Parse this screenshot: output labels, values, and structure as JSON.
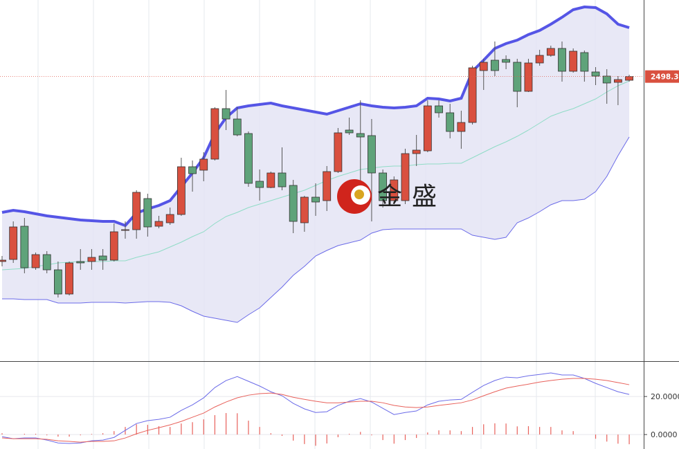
{
  "chart_data": [
    {
      "type": "candlestick",
      "watermark": "金盛",
      "last_price": 2498.35,
      "ylim": [
        2087,
        2609
      ],
      "up_color": "#d9503f",
      "down_color": "#5fa37a",
      "open": [
        2231,
        2234,
        2282,
        2222,
        2241,
        2219,
        2184,
        2231,
        2231,
        2239,
        2233,
        2276,
        2277,
        2322,
        2282,
        2287,
        2299,
        2368,
        2363,
        2379,
        2452,
        2437,
        2416,
        2347,
        2338,
        2359,
        2341,
        2287,
        2324,
        2319,
        2361,
        2421,
        2416,
        2413,
        2359,
        2319,
        2319,
        2387,
        2391,
        2456,
        2446,
        2419,
        2432,
        2507,
        2522,
        2523,
        2519,
        2477,
        2518,
        2529,
        2539,
        2506,
        2533,
        2505,
        2499,
        2490,
        2493
      ],
      "high": [
        2239,
        2289,
        2294,
        2244,
        2246,
        2231,
        2231,
        2249,
        2249,
        2249,
        2286,
        2289,
        2334,
        2329,
        2297,
        2309,
        2381,
        2377,
        2389,
        2454,
        2479,
        2454,
        2419,
        2364,
        2361,
        2396,
        2349,
        2326,
        2344,
        2369,
        2424,
        2439,
        2464,
        2437,
        2364,
        2354,
        2394,
        2414,
        2464,
        2464,
        2459,
        2449,
        2514,
        2524,
        2549,
        2529,
        2524,
        2524,
        2537,
        2543,
        2549,
        2539,
        2536,
        2512,
        2509,
        2499,
        2501
      ],
      "low": [
        2224,
        2229,
        2214,
        2219,
        2214,
        2179,
        2182,
        2219,
        2219,
        2219,
        2231,
        2264,
        2264,
        2267,
        2279,
        2284,
        2297,
        2332,
        2347,
        2377,
        2421,
        2412,
        2339,
        2319,
        2337,
        2334,
        2272,
        2274,
        2297,
        2304,
        2359,
        2414,
        2324,
        2289,
        2309,
        2314,
        2314,
        2369,
        2389,
        2439,
        2409,
        2394,
        2429,
        2479,
        2499,
        2509,
        2454,
        2476,
        2514,
        2527,
        2491,
        2504,
        2491,
        2486,
        2459,
        2457,
        2491
      ],
      "close": [
        2233,
        2281,
        2222,
        2241,
        2219,
        2184,
        2229,
        2229,
        2237,
        2233,
        2274,
        2277,
        2331,
        2281,
        2289,
        2299,
        2368,
        2358,
        2379,
        2452,
        2437,
        2414,
        2344,
        2338,
        2359,
        2339,
        2289,
        2324,
        2317,
        2361,
        2417,
        2417,
        2411,
        2359,
        2319,
        2349,
        2387,
        2392,
        2456,
        2446,
        2419,
        2432,
        2511,
        2519,
        2507,
        2519,
        2477,
        2518,
        2529,
        2539,
        2506,
        2535,
        2506,
        2499,
        2489,
        2494,
        2498.35
      ],
      "bands": [
        {
          "color": "#5555e6",
          "values": [
            2302,
            2305,
            2303,
            2300,
            2297,
            2295,
            2293,
            2291,
            2290,
            2289,
            2289,
            2283,
            2301,
            2307,
            2312,
            2319,
            2339,
            2359,
            2381,
            2416,
            2439,
            2453,
            2456,
            2458,
            2460,
            2456,
            2453,
            2450,
            2447,
            2444,
            2449,
            2454,
            2459,
            2456,
            2454,
            2453,
            2454,
            2456,
            2467,
            2466,
            2463,
            2467,
            2506,
            2522,
            2539,
            2546,
            2551,
            2559,
            2565,
            2574,
            2584,
            2595,
            2599,
            2598,
            2589,
            2574,
            2569
          ]
        },
        {
          "color": "#8fdcc6",
          "values": [
            2219,
            2220,
            2221,
            2224,
            2226,
            2229,
            2230,
            2231,
            2231,
            2231,
            2232,
            2232,
            2237,
            2241,
            2245,
            2252,
            2259,
            2267,
            2274,
            2286,
            2296,
            2302,
            2309,
            2314,
            2319,
            2324,
            2329,
            2334,
            2341,
            2348,
            2354,
            2359,
            2364,
            2366,
            2368,
            2369,
            2369,
            2371,
            2372,
            2372,
            2373,
            2373,
            2381,
            2389,
            2397,
            2404,
            2412,
            2421,
            2431,
            2441,
            2447,
            2452,
            2459,
            2466,
            2476,
            2485,
            2492
          ]
        },
        {
          "color": "#6a6ae8",
          "values": [
            2177,
            2177,
            2176,
            2176,
            2176,
            2171,
            2171,
            2171,
            2172,
            2172,
            2172,
            2171,
            2172,
            2173,
            2173,
            2172,
            2167,
            2159,
            2152,
            2149,
            2146,
            2143,
            2154,
            2164,
            2179,
            2194,
            2211,
            2224,
            2239,
            2247,
            2254,
            2258,
            2262,
            2272,
            2277,
            2278,
            2278,
            2278,
            2278,
            2278,
            2278,
            2278,
            2269,
            2266,
            2263,
            2266,
            2287,
            2294,
            2303,
            2313,
            2319,
            2319,
            2321,
            2332,
            2354,
            2384,
            2411
          ]
        }
      ]
    },
    {
      "type": "macd",
      "ylim": [
        -7.6,
        37.5
      ],
      "yticks": [
        {
          "value": 20,
          "label": "20.0000"
        },
        {
          "value": 0,
          "label": "0.0000"
        }
      ],
      "series": [
        {
          "color": "#6a6ae8",
          "values": [
            -1.1,
            -2.2,
            -1.8,
            -1.8,
            -2.9,
            -4.4,
            -4.7,
            -4.4,
            -3.3,
            -2.9,
            -1.5,
            2.2,
            5.8,
            7.3,
            8.0,
            9.1,
            12.7,
            15.6,
            19.3,
            24.7,
            28.4,
            30.5,
            28.0,
            25.5,
            22.5,
            20.4,
            16.4,
            13.5,
            11.6,
            12.0,
            15.3,
            17.5,
            18.9,
            17.1,
            13.8,
            10.5,
            11.6,
            12.4,
            15.6,
            17.5,
            18.2,
            18.5,
            22.2,
            25.8,
            28.4,
            30.2,
            29.8,
            30.9,
            31.6,
            32.4,
            31.3,
            31.3,
            29.5,
            26.9,
            24.7,
            22.5,
            21.1
          ]
        },
        {
          "color": "#e8605a",
          "values": [
            -1.8,
            -2.2,
            -2.2,
            -2.2,
            -2.5,
            -3.3,
            -3.6,
            -4.0,
            -3.6,
            -3.6,
            -3.3,
            -1.8,
            0.4,
            2.2,
            3.6,
            5.1,
            6.9,
            9.1,
            11.3,
            14.5,
            17.1,
            19.3,
            20.7,
            21.5,
            21.8,
            21.1,
            19.6,
            18.5,
            17.5,
            16.7,
            16.7,
            17.1,
            17.5,
            17.5,
            16.7,
            15.3,
            14.5,
            14.2,
            14.5,
            15.3,
            16.0,
            16.7,
            18.2,
            20.4,
            22.5,
            24.4,
            25.5,
            26.5,
            27.6,
            28.4,
            29.1,
            29.5,
            29.5,
            29.1,
            28.4,
            27.3,
            26.2
          ]
        }
      ],
      "histogram": {
        "color": "#e8605a",
        "values": [
          0.7,
          0,
          0.4,
          0.4,
          -0.4,
          -1.1,
          -1.1,
          -0.4,
          0.3,
          0.7,
          1.8,
          4.0,
          5.4,
          5.1,
          4.4,
          4.0,
          5.8,
          6.5,
          8.0,
          10.2,
          11.3,
          11.2,
          7.3,
          4.0,
          0.7,
          -0.7,
          -3.2,
          -5.0,
          -5.9,
          -4.7,
          -1.4,
          0.4,
          1.4,
          -0.4,
          -2.9,
          -4.8,
          -2.9,
          -1.8,
          1.1,
          2.2,
          2.2,
          1.8,
          4.0,
          5.4,
          5.9,
          5.8,
          4.3,
          4.4,
          4.0,
          4.0,
          2.2,
          1.8,
          0,
          -2.2,
          -3.7,
          -4.8,
          -5.1
        ]
      }
    }
  ]
}
